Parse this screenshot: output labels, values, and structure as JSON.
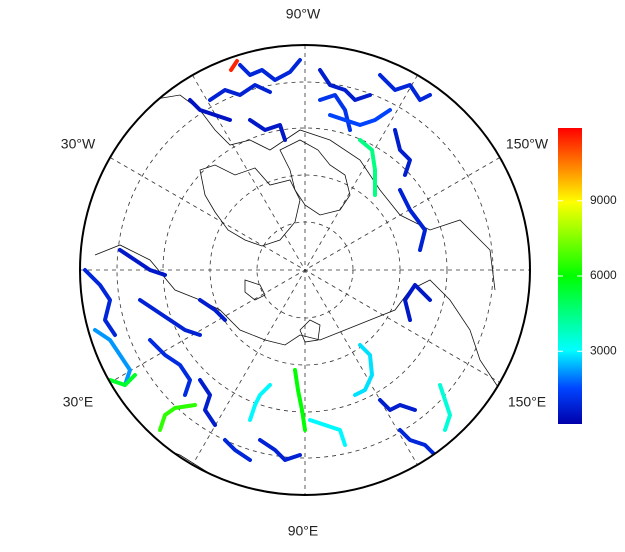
{
  "map": {
    "longitude_labels": [
      "90°W",
      "30°W",
      "150°W",
      "30°E",
      "150°E",
      "90°E"
    ],
    "river_values": [
      800,
      900,
      700,
      1200,
      4500,
      1500,
      900,
      800,
      11500,
      600,
      500,
      700,
      900,
      2200,
      5500,
      6500,
      800,
      600,
      1000,
      700,
      1500,
      3000,
      6000,
      3000,
      2800,
      3500,
      700,
      800,
      900,
      600,
      700,
      900
    ],
    "colorbar": {
      "lim": [
        100,
        11900
      ],
      "ticks": [
        3000,
        6000,
        9000
      ]
    }
  }
}
